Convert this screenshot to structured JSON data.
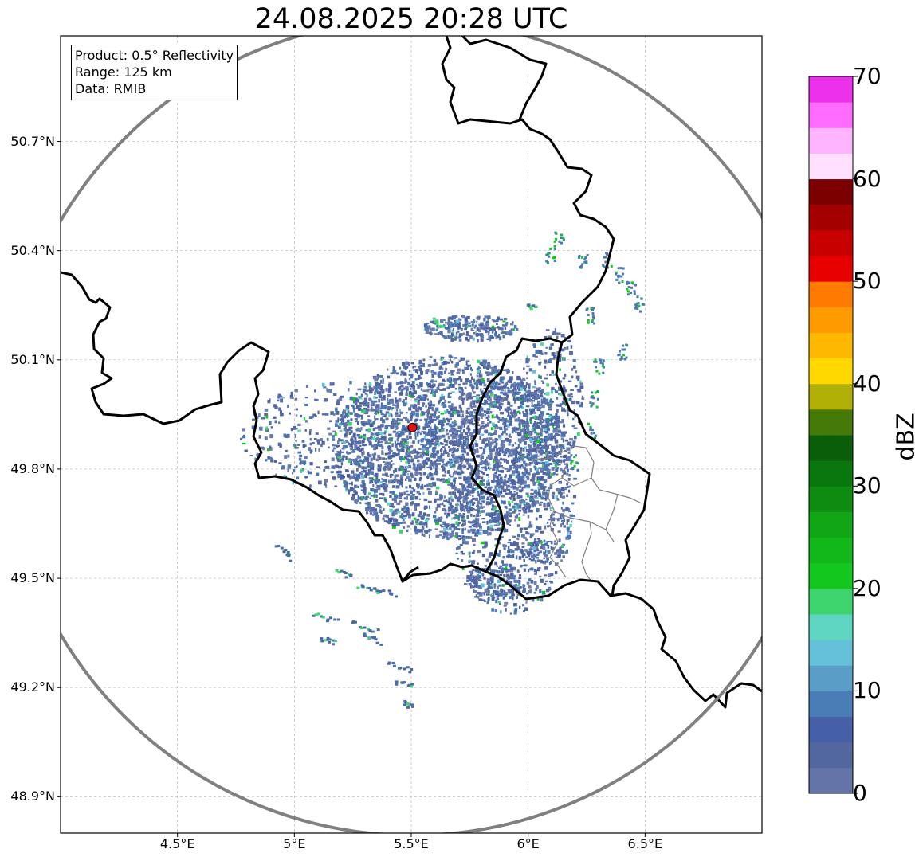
{
  "title": "24.08.2025 20:28 UTC",
  "info": {
    "product": "Product: 0.5° Reflectivity",
    "range": "Range: 125 km",
    "source": "Data: RMIB"
  },
  "map": {
    "lon_range": [
      4.0,
      7.0
    ],
    "lat_range": [
      48.8,
      50.99
    ],
    "grid": true,
    "lat_ticks": [
      {
        "value": 50.7,
        "label": "50.7°N"
      },
      {
        "value": 50.4,
        "label": "50.4°N"
      },
      {
        "value": 50.1,
        "label": "50.1°N"
      },
      {
        "value": 49.8,
        "label": "49.8°N"
      },
      {
        "value": 49.5,
        "label": "49.5°N"
      },
      {
        "value": 49.2,
        "label": "49.2°N"
      },
      {
        "value": 48.9,
        "label": "48.9°N"
      }
    ],
    "lon_ticks": [
      {
        "value": 4.5,
        "label": "4.5°E"
      },
      {
        "value": 5.0,
        "label": "5°E"
      },
      {
        "value": 5.5,
        "label": "5.5°E"
      },
      {
        "value": 6.0,
        "label": "6°E"
      },
      {
        "value": 6.5,
        "label": "6.5°E"
      }
    ],
    "radar_site": {
      "lon": 5.505,
      "lat": 49.914,
      "color": "#e01010"
    },
    "range_circle_color": "#808080",
    "border_color": "#000000",
    "subregion_color": "#808080"
  },
  "colorbar": {
    "label": "dBZ",
    "min": 0,
    "max": 70,
    "ticks": [
      {
        "value": 0,
        "label": "0"
      },
      {
        "value": 10,
        "label": "10"
      },
      {
        "value": 20,
        "label": "20"
      },
      {
        "value": 30,
        "label": "30"
      },
      {
        "value": 40,
        "label": "40"
      },
      {
        "value": 50,
        "label": "50"
      },
      {
        "value": 60,
        "label": "60"
      },
      {
        "value": 70,
        "label": "70"
      }
    ],
    "colors": [
      "#6574a8",
      "#52679e",
      "#4560a6",
      "#4a7cb5",
      "#5a9ec8",
      "#65c0da",
      "#5fd6c2",
      "#3ed46e",
      "#12c81e",
      "#12b81a",
      "#10a616",
      "#0e8c12",
      "#0a760e",
      "#0a5e0a",
      "#467a08",
      "#b0b006",
      "#ffd800",
      "#ffb800",
      "#ff9a00",
      "#ff7a00",
      "#e80000",
      "#c80000",
      "#a40000",
      "#7c0000",
      "#ffe0ff",
      "#ffb4ff",
      "#ff6cff",
      "#ec30ec"
    ]
  }
}
